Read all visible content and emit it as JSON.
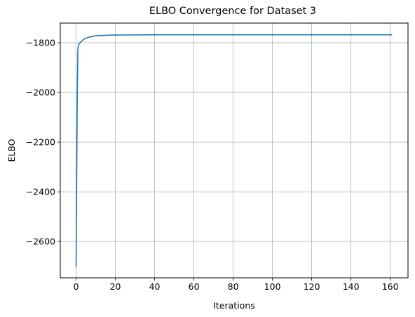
{
  "chart_data": {
    "type": "line",
    "title": "ELBO Convergence for Dataset 3",
    "xlabel": "Iterations",
    "ylabel": "ELBO",
    "xlim": [
      -8.05,
      169.05
    ],
    "ylim": [
      -2746,
      -1721
    ],
    "xticks": [
      0,
      20,
      40,
      60,
      80,
      100,
      120,
      140,
      160
    ],
    "yticks": [
      -2600,
      -2400,
      -2200,
      -2000,
      -1800
    ],
    "grid": true,
    "series": [
      {
        "color": "#1f77b4",
        "x": [
          0,
          0.3,
          0.6,
          0.9,
          1.2,
          1.6,
          2,
          3,
          4,
          5,
          6,
          8,
          10,
          15,
          20,
          30,
          40,
          60,
          80,
          100,
          120,
          140,
          161
        ],
        "y": [
          -2702,
          -2350,
          -2000,
          -1830,
          -1810,
          -1803,
          -1800,
          -1792,
          -1786,
          -1782,
          -1779,
          -1775,
          -1772,
          -1770,
          -1769,
          -1768.5,
          -1768,
          -1768,
          -1768,
          -1768,
          -1768,
          -1768,
          -1768
        ]
      }
    ]
  }
}
